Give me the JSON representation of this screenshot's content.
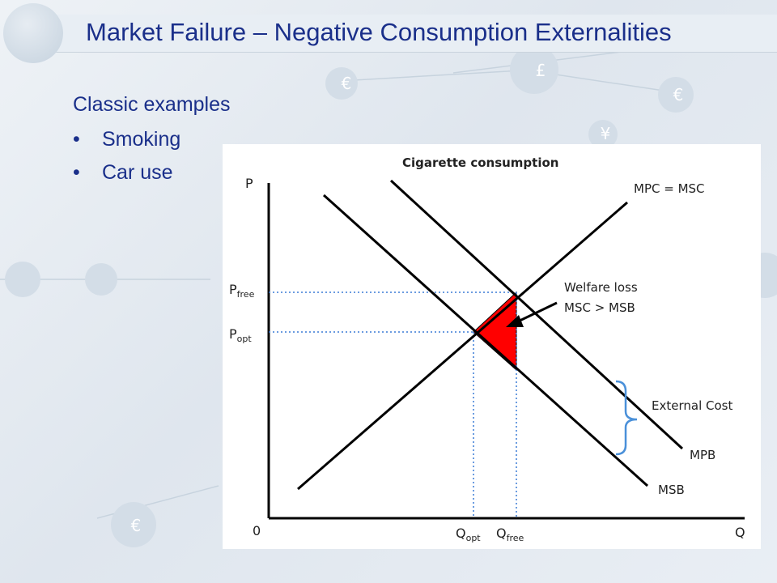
{
  "slide": {
    "title": "Market Failure – Negative Consumption Externalities",
    "heading": "Classic examples",
    "bullets": [
      "Smoking",
      "Car use"
    ],
    "bullet_symbol": "•"
  },
  "background_icons": [
    "£",
    "€",
    "€",
    "¥",
    "€"
  ],
  "diagram": {
    "title": "Cigarette consumption",
    "y_axis_label": "P",
    "x_axis_label": "Q",
    "origin_label": "0",
    "p_free": {
      "main": "P",
      "sub": "free"
    },
    "p_opt": {
      "main": "P",
      "sub": "opt"
    },
    "q_opt": {
      "main": "Q",
      "sub": "opt"
    },
    "q_free": {
      "main": "Q",
      "sub": "free"
    },
    "curves": {
      "mpc": "MPC  = MSC",
      "mpb": "MPB",
      "msb": "MSB"
    },
    "welfare_label_1": "Welfare loss",
    "welfare_label_2": "MSC > MSB",
    "external_cost": "External Cost",
    "colors": {
      "welfare_fill": "#ff0000",
      "guides": "#3a7bd5",
      "brace": "#4a90d9",
      "title_text": "#1a2f8a"
    }
  }
}
